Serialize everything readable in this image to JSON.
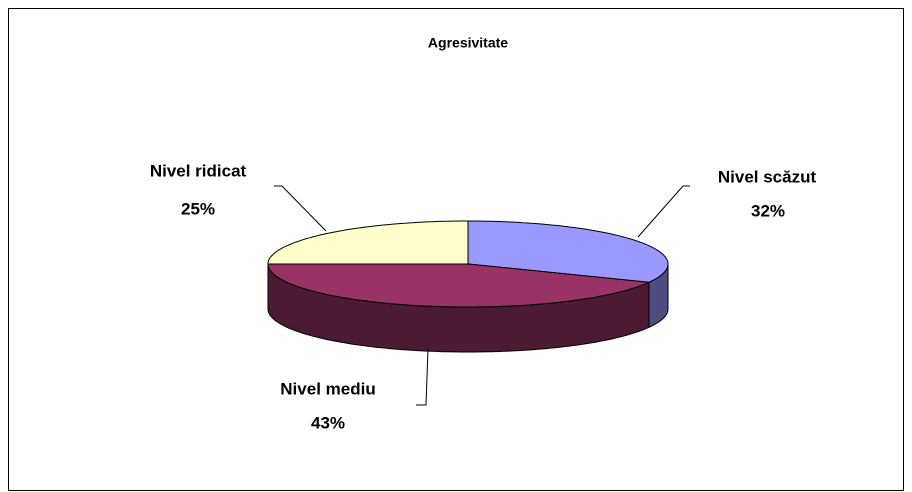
{
  "chart_data": {
    "type": "pie",
    "title": "Agresivitate",
    "categories": [
      "Nivel scăzut",
      "Nivel mediu",
      "Nivel ridicat"
    ],
    "values": [
      32,
      43,
      25
    ],
    "value_labels": [
      "32%",
      "43%",
      "25%"
    ],
    "colors": [
      "#9999ff",
      "#993366",
      "#ffffcc"
    ]
  }
}
